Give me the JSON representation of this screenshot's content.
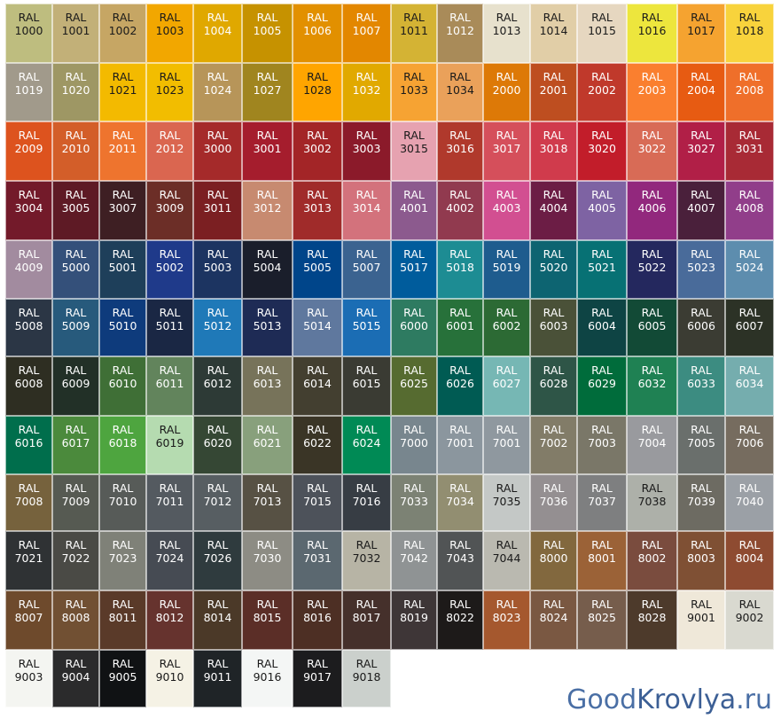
{
  "cells": [
    [
      "1000",
      "#BEBD7F",
      "d"
    ],
    [
      "1001",
      "#C2B078",
      "d"
    ],
    [
      "1002",
      "#C6A664",
      "d"
    ],
    [
      "1003",
      "#F2A700",
      "d"
    ],
    [
      "1004",
      "#E0A800",
      "l"
    ],
    [
      "1005",
      "#C69200",
      "l"
    ],
    [
      "1006",
      "#E29000",
      "l"
    ],
    [
      "1007",
      "#E38700",
      "l"
    ],
    [
      "1011",
      "#D4B334",
      "d"
    ],
    [
      "1012",
      "#A98B59",
      "l"
    ],
    [
      "1013",
      "#E7E1CD",
      "d"
    ],
    [
      "1014",
      "#E1CEA7",
      "d"
    ],
    [
      "1015",
      "#E6D7C0",
      "d"
    ],
    [
      "1016",
      "#EDE63D",
      "d"
    ],
    [
      "1017",
      "#F5A330",
      "d"
    ],
    [
      "1018",
      "#F8D33C",
      "d"
    ],
    [
      "1019",
      "#A19A8B",
      "l"
    ],
    [
      "1020",
      "#9E9764",
      "l"
    ],
    [
      "1021",
      "#F3BA00",
      "d"
    ],
    [
      "1023",
      "#F2BD00",
      "d"
    ],
    [
      "1024",
      "#B79559",
      "l"
    ],
    [
      "1027",
      "#A0851F",
      "l"
    ],
    [
      "1028",
      "#FFA500",
      "d"
    ],
    [
      "1032",
      "#E1A900",
      "l"
    ],
    [
      "1033",
      "#F6A333",
      "d"
    ],
    [
      "1034",
      "#EAA15A",
      "d"
    ],
    [
      "2000",
      "#DD7907",
      "l"
    ],
    [
      "2001",
      "#BE4E20",
      "l"
    ],
    [
      "2002",
      "#C0392B",
      "l"
    ],
    [
      "2003",
      "#FA7F2F",
      "l"
    ],
    [
      "2004",
      "#E75B12",
      "l"
    ],
    [
      "2008",
      "#EF6F2A",
      "l"
    ],
    [
      "2009",
      "#DD531E",
      "l"
    ],
    [
      "2010",
      "#D35E29",
      "l"
    ],
    [
      "2011",
      "#EE742E",
      "l"
    ],
    [
      "2012",
      "#DA6650",
      "l"
    ],
    [
      "3000",
      "#A52A2A",
      "l"
    ],
    [
      "3001",
      "#A51D2D",
      "l"
    ],
    [
      "3002",
      "#A32527",
      "l"
    ],
    [
      "3003",
      "#8B1A2A",
      "l"
    ],
    [
      "3015",
      "#E6A2B0",
      "d"
    ],
    [
      "3016",
      "#B0392C",
      "l"
    ],
    [
      "3017",
      "#D54F5B",
      "l"
    ],
    [
      "3018",
      "#D03B4C",
      "l"
    ],
    [
      "3020",
      "#C21D2A",
      "l"
    ],
    [
      "3022",
      "#D86B56",
      "l"
    ],
    [
      "3027",
      "#B11F47",
      "l"
    ],
    [
      "3031",
      "#A82A35",
      "l"
    ],
    [
      "3004",
      "#731A2A",
      "l"
    ],
    [
      "3005",
      "#5E1A25",
      "l"
    ],
    [
      "3007",
      "#3E1F23",
      "l"
    ],
    [
      "3009",
      "#6C2E27",
      "l"
    ],
    [
      "3011",
      "#7B1F22",
      "l"
    ],
    [
      "3012",
      "#C78A70",
      "l"
    ],
    [
      "3013",
      "#A02B2A",
      "l"
    ],
    [
      "3014",
      "#D3727C",
      "l"
    ],
    [
      "4001",
      "#8C5A8E",
      "l"
    ],
    [
      "4002",
      "#913A4F",
      "l"
    ],
    [
      "4003",
      "#D24F91",
      "l"
    ],
    [
      "4004",
      "#6C1D45",
      "l"
    ],
    [
      "4005",
      "#7E63A3",
      "l"
    ],
    [
      "4006",
      "#92287D",
      "l"
    ],
    [
      "4007",
      "#4A203B",
      "l"
    ],
    [
      "4008",
      "#913E8A",
      "l"
    ],
    [
      "4009",
      "#A28B9F",
      "l"
    ],
    [
      "5000",
      "#34507A",
      "l"
    ],
    [
      "5001",
      "#1E3F5A",
      "l"
    ],
    [
      "5002",
      "#1F3A8A",
      "l"
    ],
    [
      "5003",
      "#1C3461",
      "l"
    ],
    [
      "5004",
      "#1A1E2B",
      "l"
    ],
    [
      "5005",
      "#00458A",
      "l"
    ],
    [
      "5007",
      "#3B6390",
      "l"
    ],
    [
      "5017",
      "#005C9C",
      "l"
    ],
    [
      "5018",
      "#1D8C93",
      "l"
    ],
    [
      "5019",
      "#1E5C8E",
      "l"
    ],
    [
      "5020",
      "#0D6471",
      "l"
    ],
    [
      "5021",
      "#077174",
      "l"
    ],
    [
      "5022",
      "#24285E",
      "l"
    ],
    [
      "5023",
      "#496B9A",
      "l"
    ],
    [
      "5024",
      "#5D8DAE",
      "l"
    ],
    [
      "5008",
      "#2B3645",
      "l"
    ],
    [
      "5009",
      "#275A7C",
      "l"
    ],
    [
      "5010",
      "#0E3B7C",
      "l"
    ],
    [
      "5011",
      "#1A2744",
      "l"
    ],
    [
      "5012",
      "#1F79B8",
      "l"
    ],
    [
      "5013",
      "#1E2B55",
      "l"
    ],
    [
      "5014",
      "#5F789E",
      "l"
    ],
    [
      "5015",
      "#1B6DB4",
      "l"
    ],
    [
      "6000",
      "#2E7B61",
      "l"
    ],
    [
      "6001",
      "#27713A",
      "l"
    ],
    [
      "6002",
      "#2C6A34",
      "l"
    ],
    [
      "6003",
      "#4A5138",
      "l"
    ],
    [
      "6004",
      "#0E4444",
      "l"
    ],
    [
      "6005",
      "#124A36",
      "l"
    ],
    [
      "6006",
      "#3B3C33",
      "l"
    ],
    [
      "6007",
      "#2C3226",
      "l"
    ],
    [
      "6008",
      "#2E2E22",
      "l"
    ],
    [
      "6009",
      "#223027",
      "l"
    ],
    [
      "6010",
      "#3F6F36",
      "l"
    ],
    [
      "6011",
      "#62845C",
      "l"
    ],
    [
      "6012",
      "#2D3A36",
      "l"
    ],
    [
      "6013",
      "#77735A",
      "l"
    ],
    [
      "6014",
      "#433F30",
      "l"
    ],
    [
      "6015",
      "#3A3B33",
      "l"
    ],
    [
      "6025",
      "#566B30",
      "l"
    ],
    [
      "6026",
      "#005B53",
      "l"
    ],
    [
      "6027",
      "#76B7B4",
      "l"
    ],
    [
      "6028",
      "#2E5547",
      "l"
    ],
    [
      "6029",
      "#006C3B",
      "l"
    ],
    [
      "6032",
      "#1F8153",
      "l"
    ],
    [
      "6033",
      "#3C8C81",
      "l"
    ],
    [
      "6034",
      "#75ADAE",
      "l"
    ],
    [
      "6016",
      "#006E4C",
      "l"
    ],
    [
      "6017",
      "#4B8A3C",
      "l"
    ],
    [
      "6018",
      "#4EA53F",
      "l"
    ],
    [
      "6019",
      "#B5DBB0",
      "d"
    ],
    [
      "6020",
      "#354734",
      "l"
    ],
    [
      "6021",
      "#88A07C",
      "l"
    ],
    [
      "6022",
      "#3A3526",
      "l"
    ],
    [
      "6024",
      "#008A55",
      "l"
    ],
    [
      "7000",
      "#78868E",
      "l"
    ],
    [
      "7001",
      "#8B969E",
      "l"
    ],
    [
      "7001",
      "#8F989F",
      "l"
    ],
    [
      "7002",
      "#827C68",
      "l"
    ],
    [
      "7003",
      "#7A7768",
      "l"
    ],
    [
      "7004",
      "#999A9E",
      "l"
    ],
    [
      "7005",
      "#6A6F6C",
      "l"
    ],
    [
      "7006",
      "#766C5F",
      "l"
    ],
    [
      "7008",
      "#76623D",
      "l"
    ],
    [
      "7009",
      "#565A52",
      "l"
    ],
    [
      "7010",
      "#575B58",
      "l"
    ],
    [
      "7011",
      "#545A60",
      "l"
    ],
    [
      "7012",
      "#575E62",
      "l"
    ],
    [
      "7013",
      "#575144",
      "l"
    ],
    [
      "7015",
      "#4D525A",
      "l"
    ],
    [
      "7016",
      "#373D44",
      "l"
    ],
    [
      "7033",
      "#7C8274",
      "l"
    ],
    [
      "7034",
      "#928E71",
      "l"
    ],
    [
      "7035",
      "#C4C8C6",
      "d"
    ],
    [
      "7036",
      "#948F91",
      "l"
    ],
    [
      "7037",
      "#7E7F80",
      "l"
    ],
    [
      "7038",
      "#ADB0A9",
      "d"
    ],
    [
      "7039",
      "#6D6B62",
      "l"
    ],
    [
      "7040",
      "#9BA0A6",
      "l"
    ],
    [
      "7021",
      "#2F3234",
      "l"
    ],
    [
      "7022",
      "#4A4A45",
      "l"
    ],
    [
      "7023",
      "#7F8178",
      "l"
    ],
    [
      "7024",
      "#464B53",
      "l"
    ],
    [
      "7026",
      "#2F3B3E",
      "l"
    ],
    [
      "7030",
      "#8D8C84",
      "l"
    ],
    [
      "7031",
      "#5B6870",
      "l"
    ],
    [
      "7032",
      "#B7B4A5",
      "d"
    ],
    [
      "7042",
      "#8F9394",
      "l"
    ],
    [
      "7043",
      "#515455",
      "l"
    ],
    [
      "7044",
      "#BAB9B0",
      "d"
    ],
    [
      "8000",
      "#82683E",
      "l"
    ],
    [
      "8001",
      "#9B6237",
      "l"
    ],
    [
      "8002",
      "#7A4C3E",
      "l"
    ],
    [
      "8003",
      "#7F5034",
      "l"
    ],
    [
      "8004",
      "#8E4B31",
      "l"
    ],
    [
      "8007",
      "#6E4A2C",
      "l"
    ],
    [
      "8008",
      "#715033",
      "l"
    ],
    [
      "8011",
      "#5A3A29",
      "l"
    ],
    [
      "8012",
      "#66332E",
      "l"
    ],
    [
      "8014",
      "#4B3928",
      "l"
    ],
    [
      "8015",
      "#5B2E27",
      "l"
    ],
    [
      "8016",
      "#4D2F24",
      "l"
    ],
    [
      "8017",
      "#45302B",
      "l"
    ],
    [
      "8019",
      "#3E3637",
      "l"
    ],
    [
      "8022",
      "#1D1A19",
      "l"
    ],
    [
      "8023",
      "#A5582E",
      "l"
    ],
    [
      "8024",
      "#7A5842",
      "l"
    ],
    [
      "8025",
      "#765D4C",
      "l"
    ],
    [
      "8028",
      "#4D3A2B",
      "l"
    ],
    [
      "9001",
      "#EFE8D9",
      "d"
    ],
    [
      "9002",
      "#D9D9D0",
      "d"
    ],
    [
      "9003",
      "#F4F5F1",
      "d"
    ],
    [
      "9004",
      "#2B2B2C",
      "l"
    ],
    [
      "9005",
      "#101214",
      "l"
    ],
    [
      "9010",
      "#F5F2E5",
      "d"
    ],
    [
      "9011",
      "#1F2427",
      "l"
    ],
    [
      "9016",
      "#F4F6F5",
      "d"
    ],
    [
      "9017",
      "#1C1C1E",
      "l"
    ],
    [
      "9018",
      "#CBD0CC",
      "d"
    ]
  ],
  "prefix": "RAL",
  "watermark": {
    "part1": "Good",
    "part2": "Krovlya",
    "part3": ".ru"
  }
}
